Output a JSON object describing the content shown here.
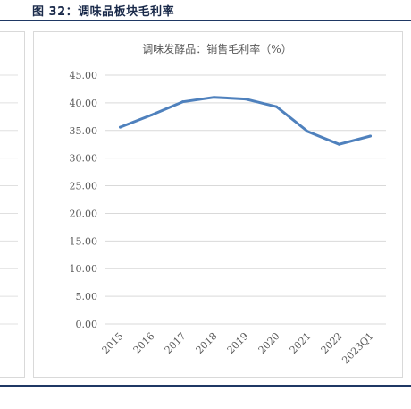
{
  "figure_label": "图 32：调味品板块毛利率",
  "chart_data": {
    "type": "line",
    "title": "调味发酵品：销售毛利率（%）",
    "categories": [
      "2015",
      "2016",
      "2017",
      "2018",
      "2019",
      "2020",
      "2021",
      "2022",
      "2023Q1"
    ],
    "series": [
      {
        "values": [
          35.6,
          37.8,
          40.2,
          41.0,
          40.7,
          39.3,
          34.8,
          32.5,
          34.0
        ]
      }
    ],
    "yticks": [
      "0.00",
      "5.00",
      "10.00",
      "15.00",
      "20.00",
      "25.00",
      "30.00",
      "35.00",
      "40.00",
      "45.00"
    ],
    "ylim": [
      0,
      45
    ],
    "grid": true,
    "line_color": "#4f81bd"
  }
}
